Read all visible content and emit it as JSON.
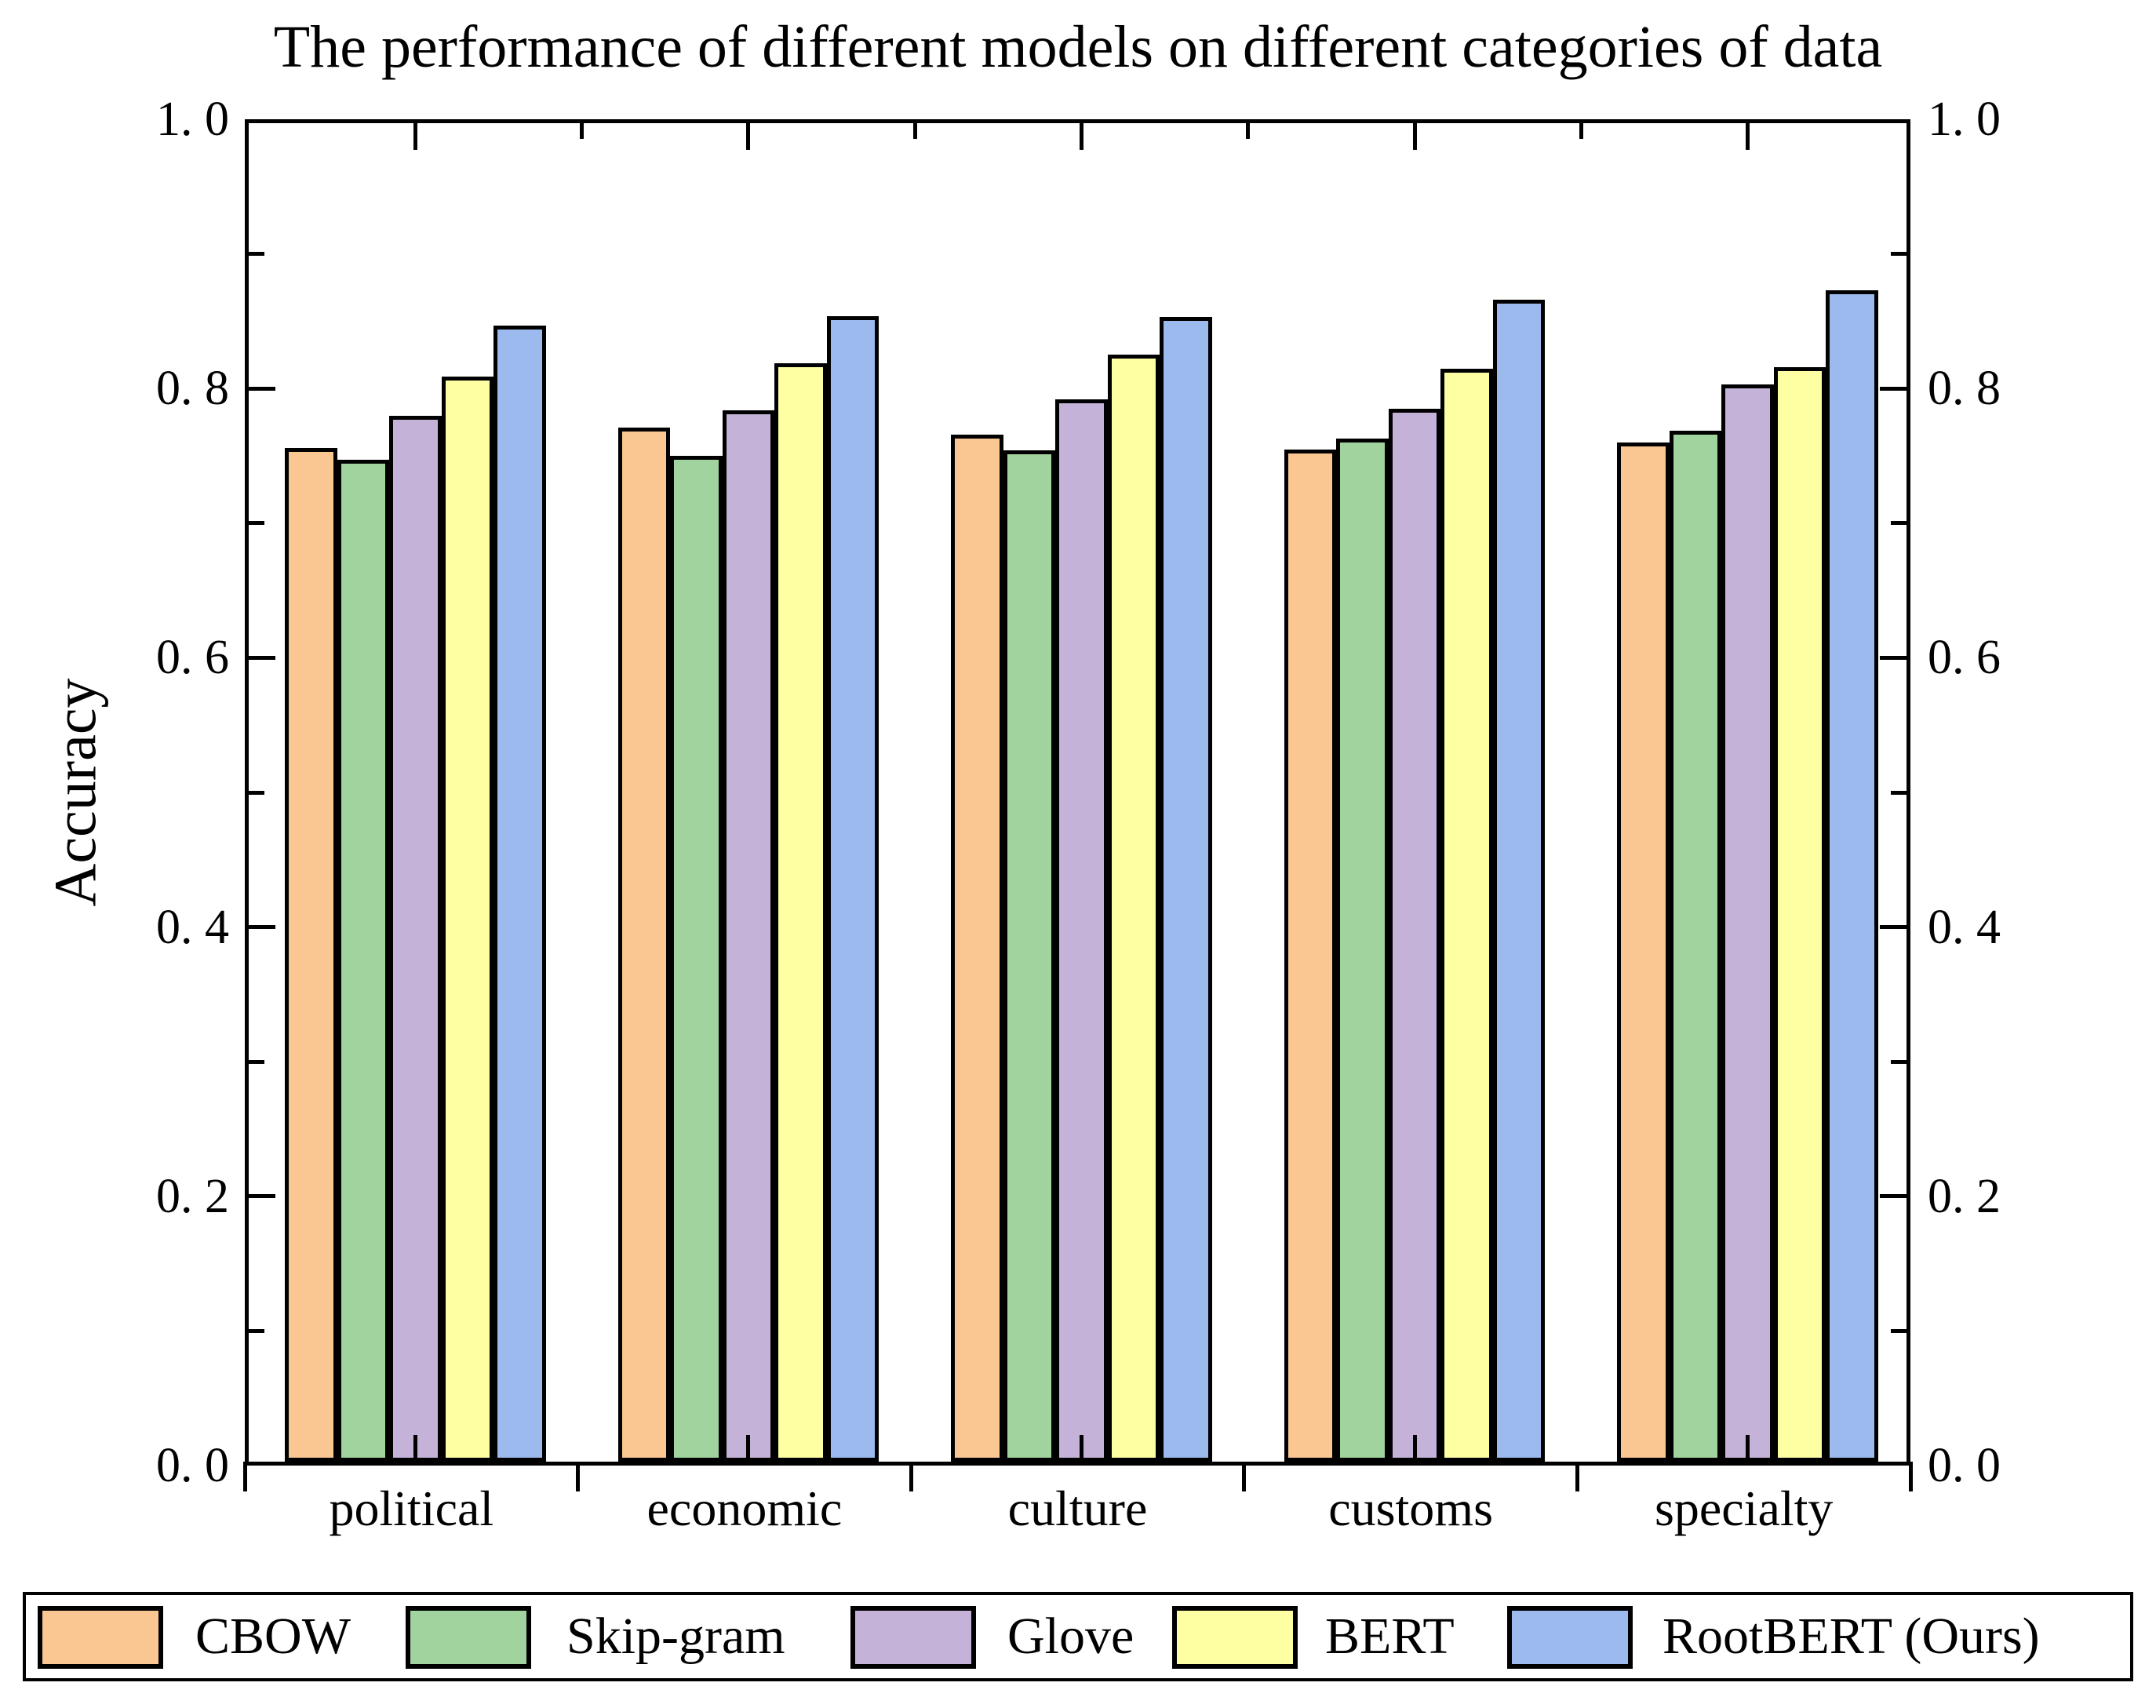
{
  "title": "The performance of different models on different categories of data",
  "chart_data": {
    "type": "bar",
    "title": "The performance of different models on different categories of data",
    "categories": [
      "political",
      "economic",
      "culture",
      "customs",
      "specialty"
    ],
    "series": [
      {
        "name": "CBOW",
        "color": "#FAC692",
        "values": [
          0.753,
          0.768,
          0.763,
          0.752,
          0.757
        ]
      },
      {
        "name": "Skip-gram",
        "color": "#A1D39E",
        "values": [
          0.744,
          0.747,
          0.751,
          0.76,
          0.766
        ]
      },
      {
        "name": "Glove",
        "color": "#C4B2D8",
        "values": [
          0.777,
          0.781,
          0.789,
          0.782,
          0.8
        ]
      },
      {
        "name": "BERT",
        "color": "#FEFEA3",
        "values": [
          0.806,
          0.816,
          0.822,
          0.812,
          0.813
        ]
      },
      {
        "name": "RootBERT (Ours)",
        "color": "#9CBAEE",
        "values": [
          0.844,
          0.851,
          0.85,
          0.863,
          0.87
        ]
      }
    ],
    "xlabel": "",
    "ylabel": "Accuracy",
    "ylim": [
      0,
      1
    ],
    "y_major_tick_values": [
      0.0,
      0.2,
      0.4,
      0.6,
      0.8,
      1.0
    ],
    "y_major_tick_labels": [
      "0. 0",
      "0. 2",
      "0. 4",
      "0. 6",
      "0. 8",
      "1. 0"
    ],
    "y_minor_tick_values": [
      0.1,
      0.3,
      0.5,
      0.7,
      0.9
    ],
    "grid": false,
    "bar_edge_color": "#000000",
    "legend_position": "bottom",
    "duplicate_right_axis_labels": true
  }
}
